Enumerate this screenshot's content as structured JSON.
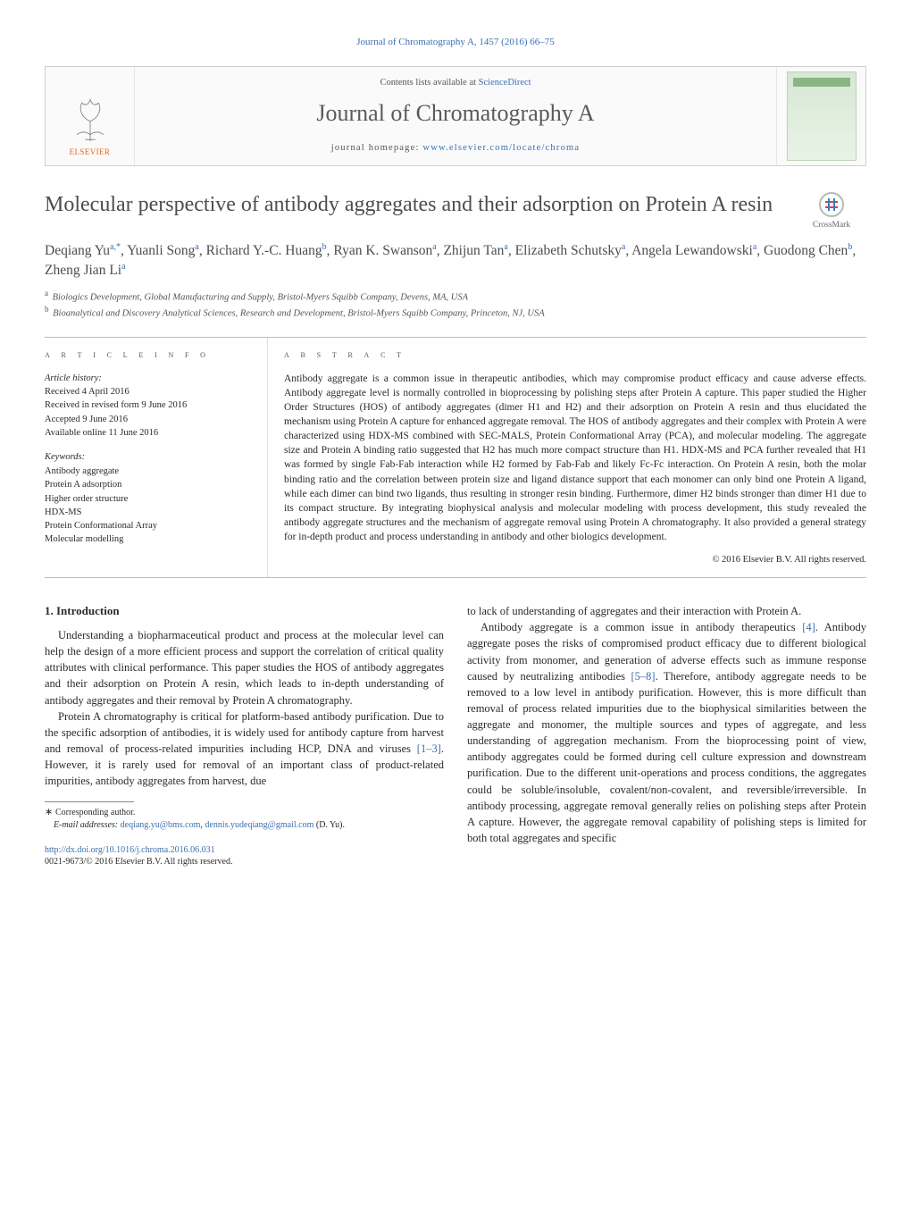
{
  "colors": {
    "link": "#3b6fb0",
    "text": "#2a2a2a",
    "muted": "#555555",
    "rule": "#bdbdbd",
    "elsevier_orange": "#e06a1f"
  },
  "header_citation": "Journal of Chromatography A, 1457 (2016) 66–75",
  "masthead": {
    "publisher_label": "ELSEVIER",
    "contents_prefix": "Contents lists available at ",
    "contents_link_text": "ScienceDirect",
    "journal_title": "Journal of Chromatography A",
    "homepage_prefix": "journal homepage: ",
    "homepage_link_text": "www.elsevier.com/locate/chroma",
    "crossmark_label": "CrossMark"
  },
  "article": {
    "title": "Molecular perspective of antibody aggregates and their adsorption on Protein A resin",
    "authors_html": "Deqiang Yu<sup>a,*</sup>, Yuanli Song<sup>a</sup>, Richard Y.-C. Huang<sup>b</sup>, Ryan K. Swanson<sup>a</sup>, Zhijun Tan<sup>a</sup>, Elizabeth Schutsky<sup>a</sup>, Angela Lewandowski<sup>a</sup>, Guodong Chen<sup>b</sup>, Zheng Jian Li<sup>a</sup>",
    "affiliations": [
      {
        "marker": "a",
        "text": "Biologics Development, Global Manufacturing and Supply, Bristol-Myers Squibb Company, Devens, MA, USA"
      },
      {
        "marker": "b",
        "text": "Bioanalytical and Discovery Analytical Sciences, Research and Development, Bristol-Myers Squibb Company, Princeton, NJ, USA"
      }
    ]
  },
  "info": {
    "heading": "a r t i c l e   i n f o",
    "history_label": "Article history:",
    "history": [
      "Received 4 April 2016",
      "Received in revised form 9 June 2016",
      "Accepted 9 June 2016",
      "Available online 11 June 2016"
    ],
    "keywords_label": "Keywords:",
    "keywords": [
      "Antibody aggregate",
      "Protein A adsorption",
      "Higher order structure",
      "HDX-MS",
      "Protein Conformational Array",
      "Molecular modelling"
    ]
  },
  "abstract": {
    "heading": "a b s t r a c t",
    "text": "Antibody aggregate is a common issue in therapeutic antibodies, which may compromise product efficacy and cause adverse effects. Antibody aggregate level is normally controlled in bioprocessing by polishing steps after Protein A capture. This paper studied the Higher Order Structures (HOS) of antibody aggregates (dimer H1 and H2) and their adsorption on Protein A resin and thus elucidated the mechanism using Protein A capture for enhanced aggregate removal. The HOS of antibody aggregates and their complex with Protein A were characterized using HDX-MS combined with SEC-MALS, Protein Conformational Array (PCA), and molecular modeling. The aggregate size and Protein A binding ratio suggested that H2 has much more compact structure than H1. HDX-MS and PCA further revealed that H1 was formed by single Fab-Fab interaction while H2 formed by Fab-Fab and likely Fc-Fc interaction. On Protein A resin, both the molar binding ratio and the correlation between protein size and ligand distance support that each monomer can only bind one Protein A ligand, while each dimer can bind two ligands, thus resulting in stronger resin binding. Furthermore, dimer H2 binds stronger than dimer H1 due to its compact structure. By integrating biophysical analysis and molecular modeling with process development, this study revealed the antibody aggregate structures and the mechanism of aggregate removal using Protein A chromatography. It also provided a general strategy for in-depth product and process understanding in antibody and other biologics development.",
    "copyright": "© 2016 Elsevier B.V. All rights reserved."
  },
  "body": {
    "section_heading": "1. Introduction",
    "p1": "Understanding a biopharmaceutical product and process at the molecular level can help the design of a more efficient process and support the correlation of critical quality attributes with clinical performance. This paper studies the HOS of antibody aggregates and their adsorption on Protein A resin, which leads to in-depth understanding of antibody aggregates and their removal by Protein A chromatography.",
    "p2a": "Protein A chromatography is critical for platform-based antibody purification. Due to the specific adsorption of antibodies, it is widely used for antibody capture from harvest and removal of process-related impurities including HCP, DNA and viruses ",
    "p2_ref": "[1–3]",
    "p2b": ". However, it is rarely used for removal of an important class of product-related impurities, antibody aggregates from harvest, due",
    "p3": "to lack of understanding of aggregates and their interaction with Protein A.",
    "p4a": "Antibody aggregate is a common issue in antibody therapeutics ",
    "p4_ref1": "[4]",
    "p4b": ". Antibody aggregate poses the risks of compromised product efficacy due to different biological activity from monomer, and generation of adverse effects such as immune response caused by neutralizing antibodies ",
    "p4_ref2": "[5–8]",
    "p4c": ". Therefore, antibody aggregate needs to be removed to a low level in antibody purification. However, this is more difficult than removal of process related impurities due to the biophysical similarities between the aggregate and monomer, the multiple sources and types of aggregate, and less understanding of aggregation mechanism. From the bioprocessing point of view, antibody aggregates could be formed during cell culture expression and downstream purification. Due to the different unit-operations and process conditions, the aggregates could be soluble/insoluble, covalent/non-covalent, and reversible/irreversible. In antibody processing, aggregate removal generally relies on polishing steps after Protein A capture. However, the aggregate removal capability of polishing steps is limited for both total aggregates and specific"
  },
  "footnotes": {
    "corresponding_label": "Corresponding author.",
    "email_label": "E-mail addresses:",
    "emails": [
      "deqiang.yu@bms.com",
      "dennis.yudeqiang@gmail.com"
    ],
    "email_author": "(D. Yu)."
  },
  "footer": {
    "doi": "http://dx.doi.org/10.1016/j.chroma.2016.06.031",
    "issn_line": "0021-9673/© 2016 Elsevier B.V. All rights reserved."
  }
}
